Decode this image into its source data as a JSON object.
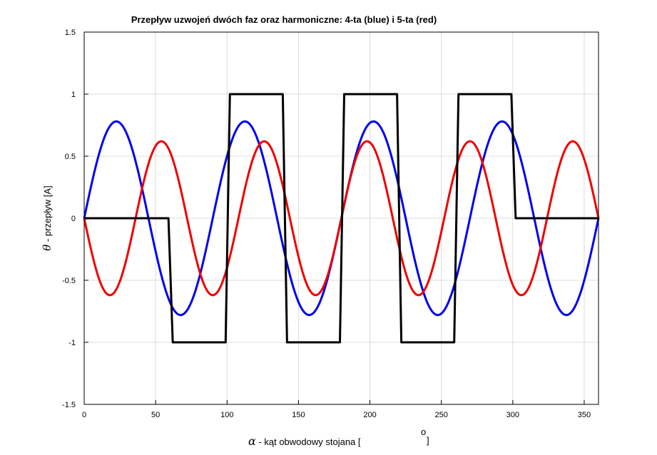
{
  "chart_data": {
    "type": "line",
    "title": "Przepływ uzwojeń dwóch faz oraz harmoniczne: 4-ta (blue) i 5-ta (red)",
    "xlabel": {
      "symbol": "α",
      "text": " - kąt obwodowy stojana [",
      "degree": "o",
      "close": "]"
    },
    "ylabel": {
      "symbol": "θ",
      "text": " - przepływ  [A]"
    },
    "xlim": [
      0,
      360
    ],
    "ylim": [
      -1.5,
      1.5
    ],
    "xticks": [
      0,
      50,
      100,
      150,
      200,
      250,
      300,
      350
    ],
    "yticks": [
      -1.5,
      -1,
      -0.5,
      0,
      0.5,
      1,
      1.5
    ],
    "grid": true,
    "series": [
      {
        "color": "#000000",
        "x": [
          0,
          59,
          62,
          99,
          102,
          139,
          142,
          179,
          182,
          219,
          222,
          259,
          262,
          299,
          302,
          360
        ],
        "y": [
          0,
          0,
          -1,
          -1,
          1,
          1,
          -1,
          -1,
          1,
          1,
          -1,
          -1,
          1,
          1,
          0,
          0
        ]
      },
      {
        "color": "#0000ee",
        "function": "sin",
        "amplitude": 0.78,
        "harmonic": 4,
        "x": [
          0,
          22.5,
          45,
          67.5,
          90,
          112.5,
          135,
          157.5,
          180,
          202.5,
          225,
          247.5,
          270,
          292.5,
          315,
          337.5,
          360
        ],
        "y": [
          0,
          0.78,
          0,
          -0.78,
          0,
          0.78,
          0,
          -0.78,
          0,
          0.78,
          0,
          -0.78,
          0,
          0.78,
          0,
          -0.78,
          0
        ]
      },
      {
        "color": "#ee0000",
        "function": "-sin",
        "amplitude": 0.62,
        "harmonic": 5,
        "x": [
          0,
          18,
          36,
          54,
          72,
          90,
          108,
          126,
          144,
          162,
          180,
          198,
          216,
          234,
          252,
          270,
          288,
          306,
          324,
          342,
          360
        ],
        "y": [
          0,
          -0.62,
          0,
          0.62,
          0,
          -0.62,
          0,
          0.62,
          0,
          -0.62,
          0,
          0.62,
          0,
          -0.62,
          0,
          0.62,
          0,
          -0.62,
          0,
          0.62,
          0
        ]
      }
    ]
  }
}
